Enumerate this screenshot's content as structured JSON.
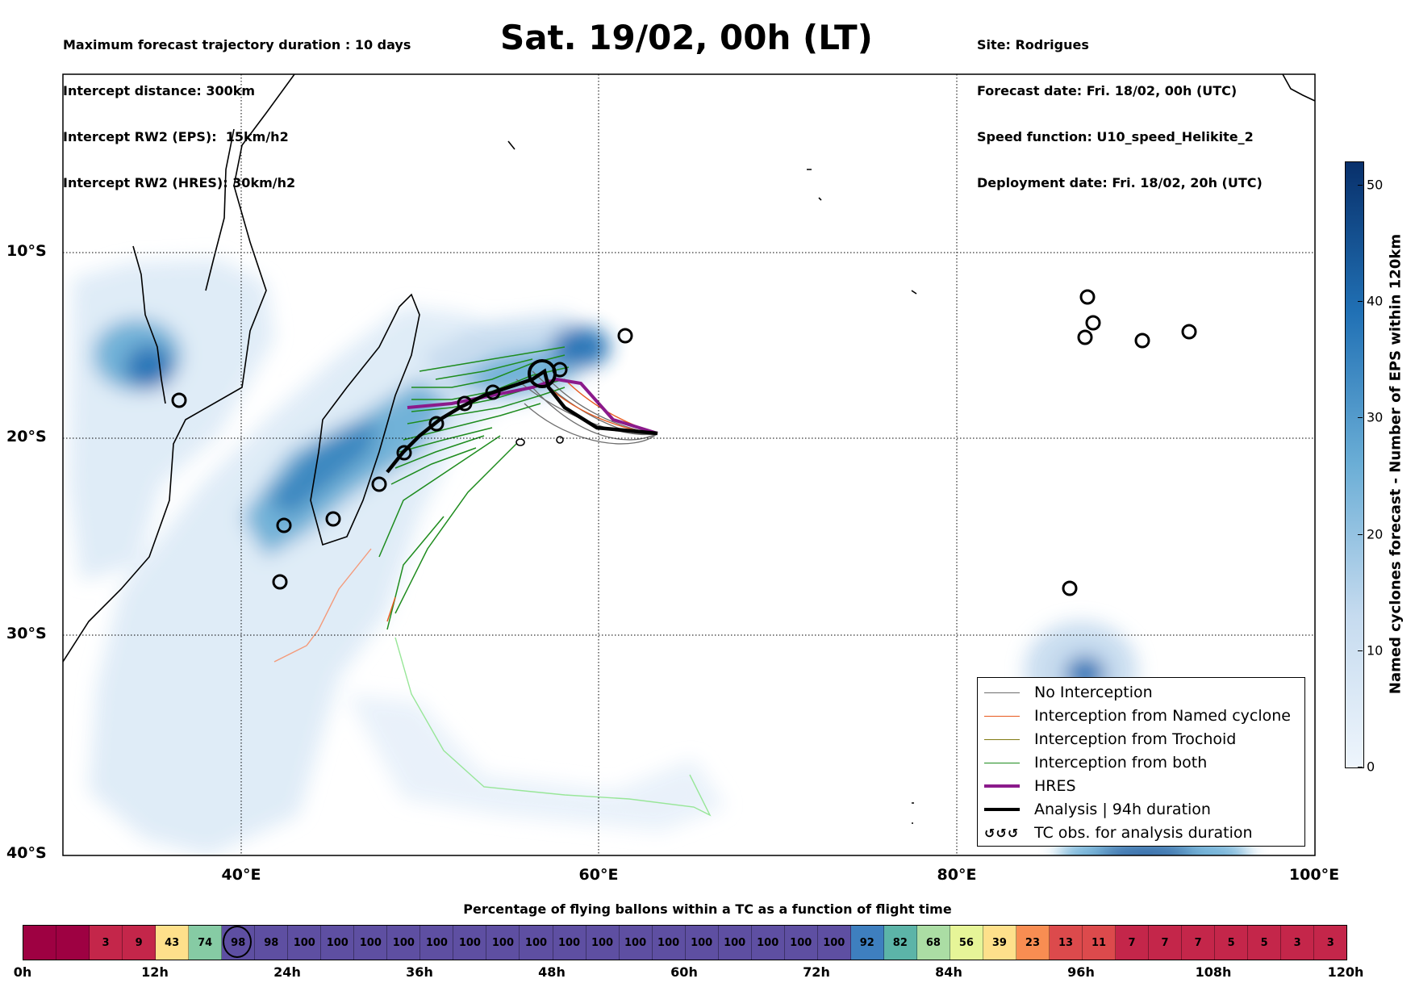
{
  "header": {
    "left_lines": [
      "Maximum forecast trajectory duration : 10 days",
      "Intercept distance: 300km",
      "Intercept RW2 (EPS):  15km/h2",
      "Intercept RW2 (HRES): 30km/h2"
    ],
    "title": "Sat. 19/02, 00h (LT)",
    "right_lines": [
      "Site: Rodrigues",
      "Forecast date: Fri. 18/02, 00h (UTC)",
      "Speed function: U10_speed_Helikite_2",
      "Deployment date: Fri. 18/02, 20h (UTC)"
    ]
  },
  "map": {
    "lat_labels": [
      "10°S",
      "20°S",
      "30°S",
      "40°S"
    ],
    "lon_labels": [
      "40°E",
      "60°E",
      "80°E",
      "100°E"
    ],
    "lon_range": [
      30,
      100
    ],
    "lat_range": [
      -40,
      0
    ],
    "colors": {
      "no_interception": "#6e6e6e",
      "named_cyclone": "#e8581c",
      "trochoid": "#807a12",
      "both": "#1e8c1e",
      "hres": "#8b1a8b",
      "analysis": "#000000",
      "density_light": "#deebf7",
      "density_mid": "#6baed6",
      "density_dark": "#08519c"
    }
  },
  "legend": {
    "items": [
      {
        "label": "No Interception",
        "icon": "thin-gray-line"
      },
      {
        "label": "Interception from Named cyclone",
        "icon": "thin-orange-line"
      },
      {
        "label": "Interception from Trochoid",
        "icon": "thin-olive-line"
      },
      {
        "label": "Interception from both",
        "icon": "thin-green-line"
      },
      {
        "label": "HRES",
        "icon": "thick-purple-line"
      },
      {
        "label": "Analysis | 94h duration",
        "icon": "thick-black-line"
      },
      {
        "label": "TC obs. for analysis duration",
        "icon": "cyclone-symbols"
      }
    ]
  },
  "colorbar": {
    "title": "Named cyclones forecast - Number of EPS within 120km",
    "ticks": [
      "0",
      "10",
      "20",
      "30",
      "40",
      "50"
    ],
    "range": [
      0,
      52
    ]
  },
  "bottom": {
    "title": "Percentage of flying ballons within a TC as a function of flight time",
    "cells": [
      "",
      "",
      "3",
      "9",
      "43",
      "74",
      "98",
      "98",
      "100",
      "100",
      "100",
      "100",
      "100",
      "100",
      "100",
      "100",
      "100",
      "100",
      "100",
      "100",
      "100",
      "100",
      "100",
      "100",
      "100",
      "92",
      "82",
      "68",
      "56",
      "39",
      "23",
      "13",
      "11",
      "7",
      "7",
      "7",
      "5",
      "5",
      "3",
      "3"
    ],
    "current_index": 6,
    "time_labels": [
      "0h",
      "12h",
      "24h",
      "36h",
      "48h",
      "60h",
      "72h",
      "84h",
      "96h",
      "108h",
      "120h"
    ]
  }
}
